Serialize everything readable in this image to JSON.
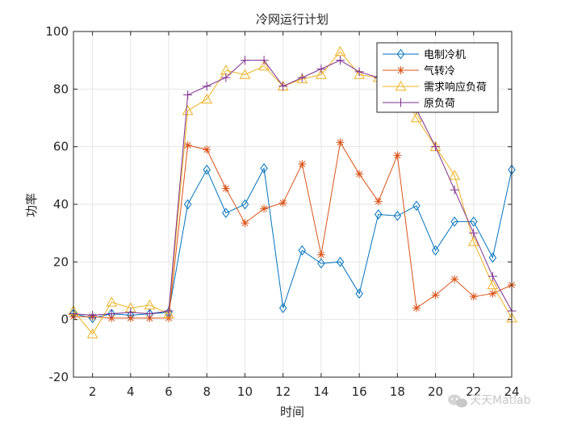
{
  "chart_data": {
    "type": "line",
    "title": "冷网运行计划",
    "xlabel": "时间",
    "ylabel": "功率",
    "xlim": [
      1,
      24
    ],
    "ylim": [
      -20,
      100
    ],
    "xticks": [
      2,
      4,
      6,
      8,
      10,
      12,
      14,
      16,
      18,
      20,
      22,
      24
    ],
    "yticks": [
      -20,
      0,
      20,
      40,
      60,
      80,
      100
    ],
    "grid": true,
    "legend_position": "top-right",
    "x": [
      1,
      2,
      3,
      4,
      5,
      6,
      7,
      8,
      9,
      10,
      11,
      12,
      13,
      14,
      15,
      16,
      17,
      18,
      19,
      20,
      21,
      22,
      23,
      24
    ],
    "series": [
      {
        "name": "电制冷机",
        "color": "#0072BD",
        "marker": "diamond",
        "values": [
          2,
          0.5,
          2,
          1.5,
          2,
          2.5,
          40,
          52,
          37,
          40,
          52.5,
          4,
          24,
          19.5,
          20,
          9,
          36.5,
          36,
          39.5,
          24,
          34,
          34,
          21.5,
          52
        ]
      },
      {
        "name": "气转冷",
        "color": "#D95319",
        "marker": "star",
        "values": [
          1,
          1,
          0.5,
          0.5,
          0.5,
          0.5,
          60.5,
          59,
          45.5,
          33.5,
          38.5,
          40.5,
          54,
          22.5,
          61.5,
          50.5,
          41,
          57,
          4,
          8.5,
          14,
          8,
          9,
          12
        ]
      },
      {
        "name": "需求响应负荷",
        "color": "#EDB120",
        "marker": "triangle",
        "values": [
          3,
          -5,
          6,
          4,
          5,
          2,
          72.5,
          76.5,
          86.5,
          85,
          88,
          81,
          83.5,
          85,
          93,
          85,
          84,
          83,
          70,
          60,
          50,
          27,
          12,
          0.5
        ]
      },
      {
        "name": "原负荷",
        "color": "#7E2F8E",
        "marker": "plus",
        "values": [
          2,
          1.5,
          2,
          2.5,
          2,
          3,
          78,
          81,
          84,
          90,
          90,
          81,
          84,
          87,
          90,
          86,
          84,
          83,
          73,
          60,
          45,
          30,
          15,
          3
        ]
      }
    ]
  },
  "watermark": {
    "icon": "wechat-icon",
    "text": "天天Matlab"
  }
}
